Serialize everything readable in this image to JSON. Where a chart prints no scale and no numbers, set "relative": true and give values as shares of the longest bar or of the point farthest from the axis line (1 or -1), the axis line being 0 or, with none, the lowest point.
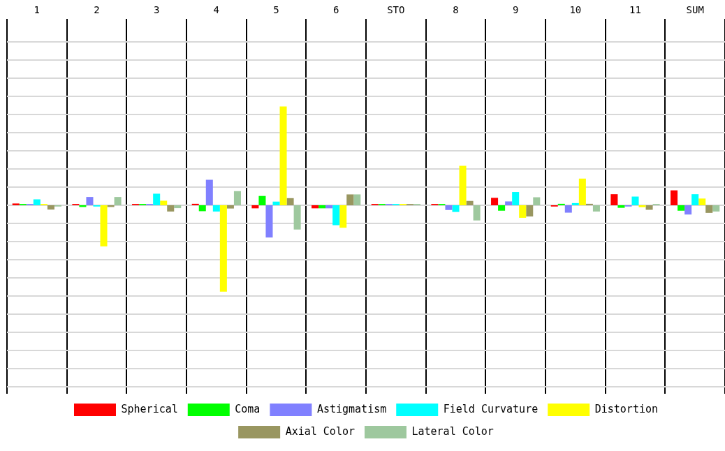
{
  "chart_data": {
    "type": "bar",
    "relative": true,
    "grid": true,
    "legend": "bottom",
    "categories": [
      "1",
      "2",
      "3",
      "4",
      "5",
      "6",
      "STO",
      "8",
      "9",
      "10",
      "11",
      "SUM"
    ],
    "series": [
      {
        "name": "Spherical",
        "color": "#ff0000",
        "values": [
          0.018,
          0.013,
          0.013,
          0.015,
          -0.031,
          -0.031,
          0.013,
          0.013,
          0.075,
          -0.013,
          0.112,
          0.151
        ]
      },
      {
        "name": "Coma",
        "color": "#00ff00",
        "values": [
          0.013,
          -0.018,
          0.013,
          -0.06,
          0.094,
          -0.031,
          0.013,
          0.013,
          -0.055,
          0.015,
          -0.026,
          -0.055
        ]
      },
      {
        "name": "Astigmatism",
        "color": "#8080ff",
        "values": [
          0.013,
          0.084,
          0.013,
          0.258,
          -0.327,
          -0.031,
          0.013,
          -0.048,
          0.039,
          -0.075,
          -0.013,
          -0.094
        ]
      },
      {
        "name": "Field Curvature",
        "color": "#00ffff",
        "values": [
          0.06,
          -0.013,
          0.117,
          -0.064,
          0.037,
          -0.202,
          0.013,
          -0.068,
          0.134,
          0.022,
          0.088,
          0.112
        ]
      },
      {
        "name": "Distortion",
        "color": "#ffff00",
        "values": [
          0.013,
          -0.417,
          0.046,
          -0.876,
          1,
          -0.228,
          0.013,
          0.399,
          -0.127,
          0.27,
          -0.02,
          0.068
        ]
      },
      {
        "name": "Axial Color",
        "color": "#999660",
        "values": [
          -0.044,
          -0.018,
          -0.064,
          -0.033,
          0.072,
          0.11,
          0.013,
          0.044,
          -0.114,
          0.015,
          -0.046,
          -0.077
        ]
      },
      {
        "name": "Lateral Color",
        "color": "#9ec89e",
        "values": [
          -0.013,
          0.084,
          -0.029,
          0.143,
          -0.246,
          0.11,
          0.013,
          -0.154,
          0.081,
          -0.064,
          0.013,
          -0.064
        ]
      }
    ]
  }
}
